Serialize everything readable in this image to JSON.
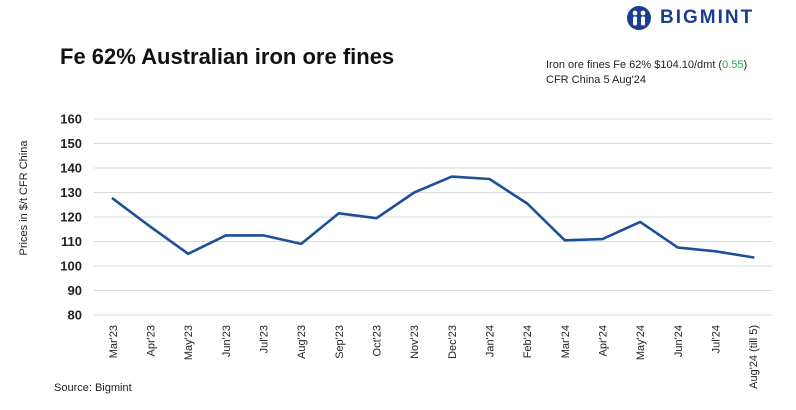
{
  "header": {
    "brand": "BIGMINT",
    "title": "Fe 62% Australian iron ore fines",
    "info_line1_prefix": "Iron ore fines Fe 62% $104.10/dmt (",
    "info_change": "0.55",
    "info_line1_suffix": ")",
    "info_line2": "CFR China 5 Aug'24"
  },
  "footer": {
    "source": "Source: Bigmint"
  },
  "colors": {
    "line": "#1f4e9c",
    "grid": "#d9d9d9",
    "change_positive": "#2aa84a",
    "brand": "#1a3d8f"
  },
  "icons": {
    "logo": "bigmint-logo-icon"
  },
  "chart_data": {
    "type": "line",
    "title": "Fe 62% Australian iron ore fines",
    "xlabel": "",
    "ylabel": "Prices in $/t CFR China",
    "ylim": [
      80,
      160
    ],
    "yticks": [
      80,
      90,
      100,
      110,
      120,
      130,
      140,
      150,
      160
    ],
    "grid": true,
    "categories": [
      "Mar'23",
      "Apr'23",
      "May'23",
      "Jun'23",
      "Jul'23",
      "Aug'23",
      "Sep'23",
      "Oct'23",
      "Nov'23",
      "Dec'23",
      "Jan'24",
      "Feb'24",
      "Mar'24",
      "Apr'24",
      "May'24",
      "Jun'24",
      "Jul'24",
      "Aug'24 (till 5)"
    ],
    "series": [
      {
        "values": [
          127.5,
          116,
          105,
          112.5,
          112.5,
          109,
          121.5,
          119.5,
          130,
          136.5,
          135.5,
          125.5,
          110.5,
          111,
          118,
          107.5,
          106,
          103.5
        ]
      }
    ]
  }
}
